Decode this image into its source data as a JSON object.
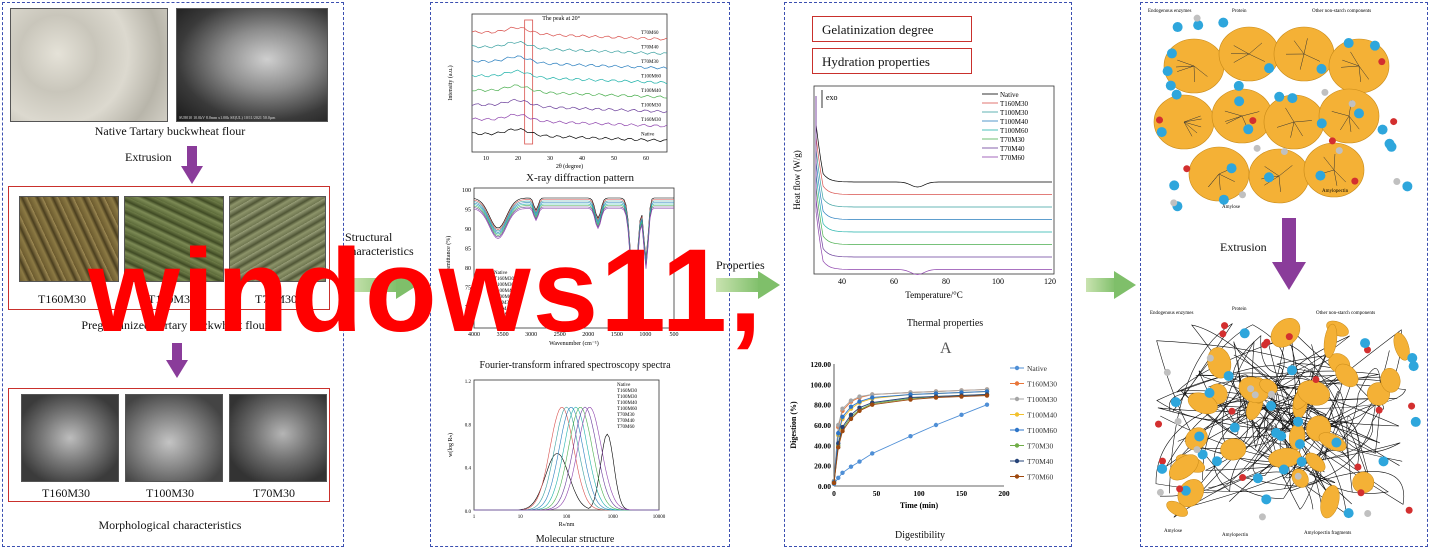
{
  "panel1": {
    "native_caption": "Native Tartary buckwheat flour",
    "extrusion_label": "Extrusion",
    "samples": [
      "T160M30",
      "T100M30",
      "T70M30"
    ],
    "pregel_caption": "Pregelatinized Tartary buckwheat flour",
    "morph_caption": "Morphological characteristics",
    "sem_footer": "SU8010 10.0kV 8.0mm x1.00k SE(UL) 10/11/2021 50.0µm"
  },
  "arrow1_label": "Structural characteristics",
  "arrow2_label": "Properties",
  "panel2": {
    "xrd_caption": "X-ray diffraction pattern",
    "xrd_annotation": "The peak at 20°",
    "xrd_ylabel": "Intensity (a.u.)",
    "xrd_xlabel": "2θ (degree)",
    "xrd_xticks": [
      "10",
      "20",
      "30",
      "40",
      "50",
      "60"
    ],
    "xrd_series": [
      "T70M60",
      "T70M40",
      "T70M30",
      "T100M60",
      "T100M40",
      "T100M30",
      "T160M30",
      "Native"
    ],
    "ftir_caption": "Fourier-transform infrared spectroscopy spectra",
    "ftir_ylabel": "Transmittance (%)",
    "ftir_xlabel": "Wavenumber (cm⁻¹)",
    "ftir_yticks": [
      "100",
      "95",
      "90",
      "85",
      "80",
      "75",
      "70",
      "65"
    ],
    "ftir_xticks": [
      "4000",
      "3500",
      "3000",
      "2500",
      "2000",
      "1500",
      "1000",
      "500"
    ],
    "ftir_legend": [
      "Native",
      "T160M30",
      "T100M30",
      "T100M40",
      "T100M60",
      "T70M30",
      "T70M40",
      "T70M60"
    ],
    "mol_caption": "Molecular structure",
    "mol_ylabel": "w(log Rₕ)",
    "mol_xlabel": "Rₕ/nm",
    "mol_yticks": [
      "1.2",
      "0.8",
      "0.4",
      "0.0"
    ],
    "mol_xticks": [
      "1",
      "10",
      "100",
      "1000",
      "10000"
    ],
    "mol_legend": [
      "Native",
      "T160M30",
      "T100M30",
      "T100M40",
      "T100M60",
      "T70M30",
      "T70M40",
      "T70M60"
    ]
  },
  "panel3": {
    "gel_label": "Gelatinization degree",
    "hyd_label": "Hydration properties",
    "dsc_ylabel": "Heat flow (W/g)",
    "dsc_xlabel": "Temperature/°C",
    "dsc_caption": "Thermal properties",
    "dsc_exo": "exo",
    "dsc_xticks": [
      "40",
      "60",
      "80",
      "100",
      "120"
    ],
    "dsc_legend": [
      "Native",
      "T160M30",
      "T100M30",
      "T100M40",
      "T100M60",
      "T70M30",
      "T70M40",
      "T70M60"
    ],
    "panel_letter": "A",
    "dig_caption": "Digestibility"
  },
  "panel4": {
    "extrusion_label": "Extrusion",
    "top_labels": [
      "Endogenous enzymes",
      "Protein",
      "Other non-starch components",
      "Amylose",
      "Amylopectin"
    ],
    "bottom_labels": [
      "Endogenous enzymes",
      "Protein",
      "Other non-starch components",
      "Amylose",
      "Amylopectin",
      "Amylopectin fragments"
    ]
  },
  "watermark": "windows11,",
  "chart_data": [
    {
      "type": "line",
      "title": "",
      "xlabel": "Time (min)",
      "ylabel": "Digestion (%)",
      "x": [
        0,
        5,
        10,
        20,
        30,
        45,
        90,
        120,
        150,
        180
      ],
      "ylim": [
        0,
        120
      ],
      "yticks": [
        "0.00",
        "20.00",
        "40.00",
        "60.00",
        "80.00",
        "100.00",
        "120.00"
      ],
      "xticks": [
        "0",
        "50",
        "100",
        "150",
        "200"
      ],
      "legend_position": "right",
      "series": [
        {
          "name": "Native",
          "color": "#4f8fd6",
          "values": [
            2,
            8,
            13,
            19,
            24,
            32,
            49,
            60,
            70,
            80
          ]
        },
        {
          "name": "T160M30",
          "color": "#e8763a",
          "values": [
            5,
            58,
            74,
            83,
            87,
            90,
            92,
            93,
            94,
            95
          ]
        },
        {
          "name": "T100M30",
          "color": "#a5a5a5",
          "values": [
            5,
            60,
            76,
            84,
            88,
            90,
            92,
            93,
            94,
            95
          ]
        },
        {
          "name": "T100M40",
          "color": "#f2c12e",
          "values": [
            4,
            50,
            66,
            76,
            82,
            86,
            90,
            91,
            92,
            93
          ]
        },
        {
          "name": "T100M60",
          "color": "#2e75c8",
          "values": [
            4,
            52,
            68,
            78,
            83,
            87,
            90,
            91,
            92,
            93
          ]
        },
        {
          "name": "T70M30",
          "color": "#70ad47",
          "values": [
            3,
            40,
            56,
            68,
            75,
            81,
            86,
            88,
            89,
            90
          ]
        },
        {
          "name": "T70M40",
          "color": "#264478",
          "values": [
            3,
            42,
            58,
            70,
            77,
            82,
            87,
            88,
            89,
            90
          ]
        },
        {
          "name": "T70M60",
          "color": "#9e480e",
          "values": [
            3,
            38,
            54,
            66,
            74,
            80,
            85,
            87,
            88,
            89
          ]
        }
      ]
    }
  ]
}
